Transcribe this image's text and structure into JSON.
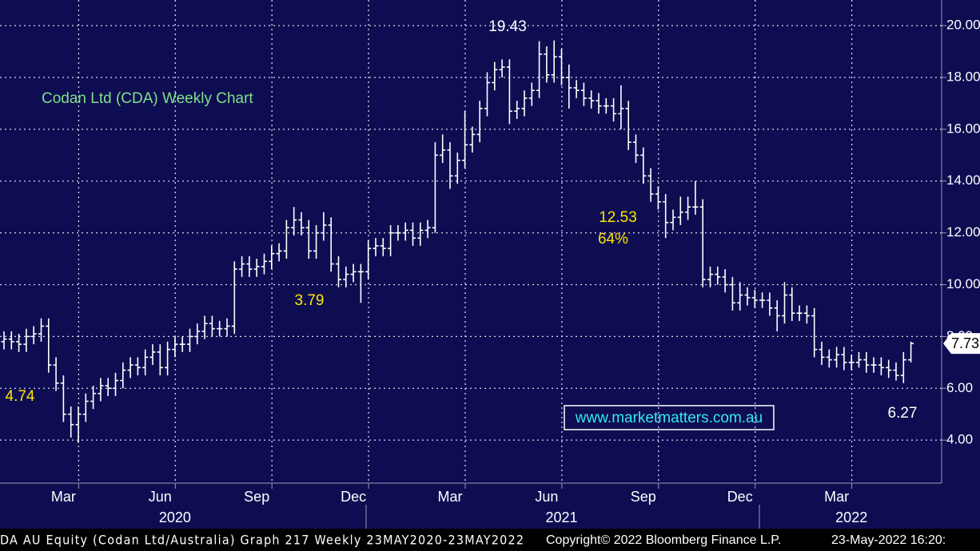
{
  "chart_data": {
    "type": "ohlc",
    "title": "Codan Ltd (CDA) Weekly Chart",
    "title_color": "#7fe08a",
    "color": "#ffffff",
    "grid": true,
    "ylim": [
      2.34,
      20.99
    ],
    "yticks": [
      {
        "value": 4,
        "label": "4.00"
      },
      {
        "value": 6,
        "label": "6.00"
      },
      {
        "value": 8,
        "label": "8.00"
      },
      {
        "value": 10,
        "label": "10.00"
      },
      {
        "value": 12,
        "label": "12.00"
      },
      {
        "value": 14,
        "label": "14.00"
      },
      {
        "value": 16,
        "label": "16.00"
      },
      {
        "value": 18,
        "label": "18.00"
      },
      {
        "value": 20,
        "label": "20.00"
      }
    ],
    "categories": [
      null,
      null,
      null,
      null,
      null,
      null,
      null,
      null,
      "Mar",
      null,
      null,
      null,
      null,
      null,
      null,
      null,
      null,
      null,
      null,
      null,
      null,
      "Jun",
      null,
      null,
      null,
      null,
      null,
      null,
      null,
      null,
      null,
      null,
      null,
      null,
      "Sep",
      null,
      null,
      null,
      null,
      null,
      null,
      null,
      null,
      null,
      null,
      null,
      null,
      "Dec",
      null,
      null,
      null,
      null,
      null,
      null,
      null,
      null,
      null,
      null,
      null,
      null,
      "Mar",
      null,
      null,
      null,
      null,
      null,
      null,
      null,
      null,
      null,
      null,
      null,
      null,
      "Jun",
      null,
      null,
      null,
      null,
      null,
      null,
      null,
      null,
      null,
      null,
      null,
      null,
      "Sep",
      null,
      null,
      null,
      null,
      null,
      null,
      null,
      null,
      null,
      null,
      null,
      null,
      "Dec",
      null,
      null,
      null,
      null,
      null,
      null,
      null,
      null,
      null,
      null,
      null,
      null,
      "Mar",
      null,
      null,
      null,
      null,
      null,
      null,
      null,
      null,
      null,
      null
    ],
    "years": [
      null,
      null,
      null,
      null,
      null,
      null,
      null,
      null,
      null,
      null,
      null,
      null,
      null,
      null,
      null,
      null,
      null,
      null,
      null,
      null,
      null,
      null,
      null,
      "2020",
      null,
      null,
      null,
      null,
      null,
      null,
      null,
      null,
      null,
      null,
      null,
      null,
      null,
      null,
      null,
      null,
      null,
      null,
      null,
      null,
      null,
      null,
      null,
      null,
      null,
      null,
      null,
      null,
      null,
      null,
      null,
      null,
      null,
      null,
      null,
      null,
      null,
      null,
      null,
      null,
      null,
      null,
      null,
      null,
      null,
      null,
      null,
      null,
      null,
      null,
      null,
      "2021",
      null,
      null,
      null,
      null,
      null,
      null,
      null,
      null,
      null,
      null,
      null,
      null,
      null,
      null,
      null,
      null,
      null,
      null,
      null,
      null,
      null,
      null,
      null,
      null,
      null,
      null,
      null,
      null,
      null,
      null,
      null,
      null,
      null,
      null,
      null,
      null,
      null,
      null,
      "2022",
      null,
      null,
      null,
      null,
      null,
      null,
      null,
      null
    ],
    "open": [
      7.8,
      7.9,
      7.8,
      7.7,
      8.0,
      8.1,
      8.4,
      6.9,
      6.2,
      5.0,
      4.6,
      5.0,
      5.5,
      5.8,
      6.1,
      6.0,
      6.3,
      6.7,
      6.9,
      6.8,
      7.2,
      7.4,
      6.8,
      7.5,
      7.7,
      7.7,
      8.0,
      8.2,
      8.5,
      8.3,
      8.3,
      8.4,
      10.6,
      10.8,
      10.6,
      10.7,
      10.9,
      11.2,
      11.3,
      12.2,
      12.5,
      12.2,
      11.3,
      12.0,
      12.3,
      10.8,
      10.2,
      10.4,
      10.5,
      10.5,
      11.4,
      11.5,
      11.4,
      12.0,
      12.0,
      12.1,
      11.8,
      12.1,
      12.2,
      15.0,
      15.2,
      14.2,
      14.8,
      15.4,
      15.8,
      16.8,
      17.8,
      18.3,
      18.4,
      16.7,
      16.8,
      17.2,
      17.5,
      18.9,
      18.1,
      18.8,
      18.0,
      17.6,
      17.5,
      17.2,
      17.1,
      16.9,
      16.9,
      16.6,
      16.8,
      15.5,
      15.0,
      14.2,
      13.5,
      13.2,
      12.4,
      12.6,
      12.8,
      13.0,
      13.0,
      10.2,
      10.4,
      10.3,
      10.0,
      9.3,
      9.6,
      9.5,
      9.4,
      9.4,
      9.1,
      8.8,
      9.6,
      8.9,
      8.9,
      8.8,
      7.5,
      7.2,
      7.1,
      7.3,
      7.0,
      7.0,
      7.1,
      6.9,
      6.9,
      6.8,
      6.7,
      6.5,
      7.1
    ],
    "high": [
      8.2,
      8.2,
      8.1,
      8.3,
      8.4,
      8.7,
      8.7,
      7.2,
      6.5,
      5.3,
      5.3,
      5.8,
      6.1,
      6.4,
      6.4,
      6.6,
      7.0,
      7.2,
      7.2,
      7.5,
      7.7,
      7.7,
      7.8,
      8.0,
      8.0,
      8.3,
      8.5,
      8.8,
      8.8,
      8.6,
      8.7,
      10.9,
      11.1,
      11.1,
      11.0,
      11.2,
      11.5,
      11.6,
      12.5,
      13.0,
      12.8,
      12.5,
      12.3,
      12.8,
      12.6,
      11.1,
      10.7,
      10.8,
      10.8,
      11.7,
      11.8,
      11.8,
      12.3,
      12.3,
      12.4,
      12.4,
      12.4,
      12.5,
      15.5,
      15.8,
      15.5,
      15.1,
      16.7,
      16.1,
      17.1,
      18.2,
      18.6,
      18.7,
      18.7,
      17.1,
      17.5,
      17.8,
      19.4,
      19.2,
      19.43,
      19.1,
      18.5,
      17.9,
      17.8,
      17.5,
      17.4,
      17.2,
      17.2,
      17.7,
      17.1,
      15.8,
      15.3,
      14.5,
      13.8,
      13.5,
      12.9,
      13.4,
      13.4,
      14.0,
      13.3,
      10.7,
      10.7,
      10.6,
      10.3,
      10.1,
      9.9,
      9.8,
      9.7,
      9.7,
      9.4,
      10.1,
      9.9,
      9.2,
      9.2,
      9.1,
      7.8,
      7.5,
      7.6,
      7.6,
      7.3,
      7.4,
      7.4,
      7.2,
      7.2,
      7.1,
      7.0,
      7.4,
      7.8
    ],
    "low": [
      7.5,
      7.5,
      7.4,
      7.4,
      7.7,
      7.8,
      6.6,
      5.9,
      4.7,
      4.1,
      3.9,
      4.7,
      5.2,
      5.5,
      5.7,
      5.7,
      6.0,
      6.4,
      6.5,
      6.5,
      6.9,
      6.5,
      6.5,
      7.2,
      7.4,
      7.4,
      7.7,
      7.9,
      8.0,
      8.0,
      8.0,
      8.1,
      10.3,
      10.3,
      10.3,
      10.4,
      10.6,
      10.9,
      11.0,
      11.9,
      11.9,
      11.0,
      11.0,
      11.7,
      10.5,
      9.9,
      9.9,
      10.1,
      9.3,
      10.2,
      11.1,
      11.1,
      11.1,
      11.7,
      11.7,
      11.5,
      11.5,
      11.8,
      12.0,
      14.7,
      13.7,
      13.9,
      14.5,
      15.1,
      15.5,
      16.5,
      17.5,
      18.0,
      16.2,
      16.4,
      16.5,
      16.9,
      17.2,
      17.8,
      17.8,
      17.7,
      16.8,
      17.2,
      16.9,
      16.8,
      16.6,
      16.6,
      16.3,
      16.0,
      15.2,
      14.7,
      13.9,
      13.2,
      12.9,
      11.8,
      12.1,
      12.3,
      12.5,
      12.7,
      9.9,
      9.9,
      10.0,
      9.7,
      9.0,
      9.0,
      9.2,
      9.1,
      9.1,
      8.8,
      8.2,
      8.5,
      8.6,
      8.6,
      8.5,
      7.2,
      6.9,
      6.8,
      6.8,
      6.7,
      6.7,
      6.8,
      6.6,
      6.6,
      6.5,
      6.4,
      6.3,
      6.2,
      7.0
    ],
    "close": [
      7.9,
      7.8,
      7.7,
      8.0,
      8.1,
      8.4,
      6.9,
      6.2,
      5.0,
      4.6,
      5.0,
      5.5,
      5.8,
      6.1,
      6.0,
      6.3,
      6.7,
      6.9,
      6.8,
      7.2,
      7.4,
      6.8,
      7.5,
      7.7,
      7.7,
      8.0,
      8.2,
      8.5,
      8.3,
      8.3,
      8.4,
      10.6,
      10.8,
      10.6,
      10.7,
      10.9,
      11.2,
      11.3,
      12.2,
      12.5,
      12.2,
      11.3,
      12.0,
      12.3,
      10.8,
      10.2,
      10.4,
      10.5,
      10.5,
      11.4,
      11.5,
      11.4,
      12.0,
      12.0,
      12.1,
      11.8,
      12.1,
      12.2,
      15.0,
      15.2,
      14.2,
      14.8,
      15.4,
      15.8,
      16.8,
      17.8,
      18.3,
      18.4,
      16.7,
      16.8,
      17.2,
      17.5,
      18.9,
      18.1,
      18.8,
      18.0,
      17.6,
      17.5,
      17.2,
      17.1,
      16.9,
      16.9,
      16.6,
      16.8,
      15.5,
      15.0,
      14.2,
      13.5,
      13.2,
      12.4,
      12.6,
      12.8,
      13.0,
      13.0,
      10.2,
      10.4,
      10.3,
      10.0,
      9.3,
      9.6,
      9.5,
      9.4,
      9.4,
      9.1,
      8.8,
      9.6,
      8.9,
      8.9,
      8.8,
      7.5,
      7.2,
      7.1,
      7.3,
      7.0,
      7.0,
      7.1,
      6.9,
      6.9,
      6.8,
      6.7,
      6.5,
      7.1,
      7.73
    ],
    "last_price": 7.73,
    "annotations": [
      {
        "text": "19.43",
        "color": "#ffffff"
      },
      {
        "text": "12.53",
        "color": "#ffe600"
      },
      {
        "text": "64%",
        "color": "#ffe600"
      },
      {
        "text": "3.79",
        "color": "#ffe600"
      },
      {
        "text": "4.74",
        "color": "#ffe600"
      },
      {
        "text": "6.27",
        "color": "#ffffff"
      }
    ],
    "watermark": "www.marketmatters.com.au",
    "footer": [
      "DA AU Equity (Codan Ltd/Australia) Graph 217  Weekly 23MAY2020-23MAY2022",
      "Copyright© 2022 Bloomberg Finance L.P.",
      "23-May-2022 16:20:"
    ]
  }
}
